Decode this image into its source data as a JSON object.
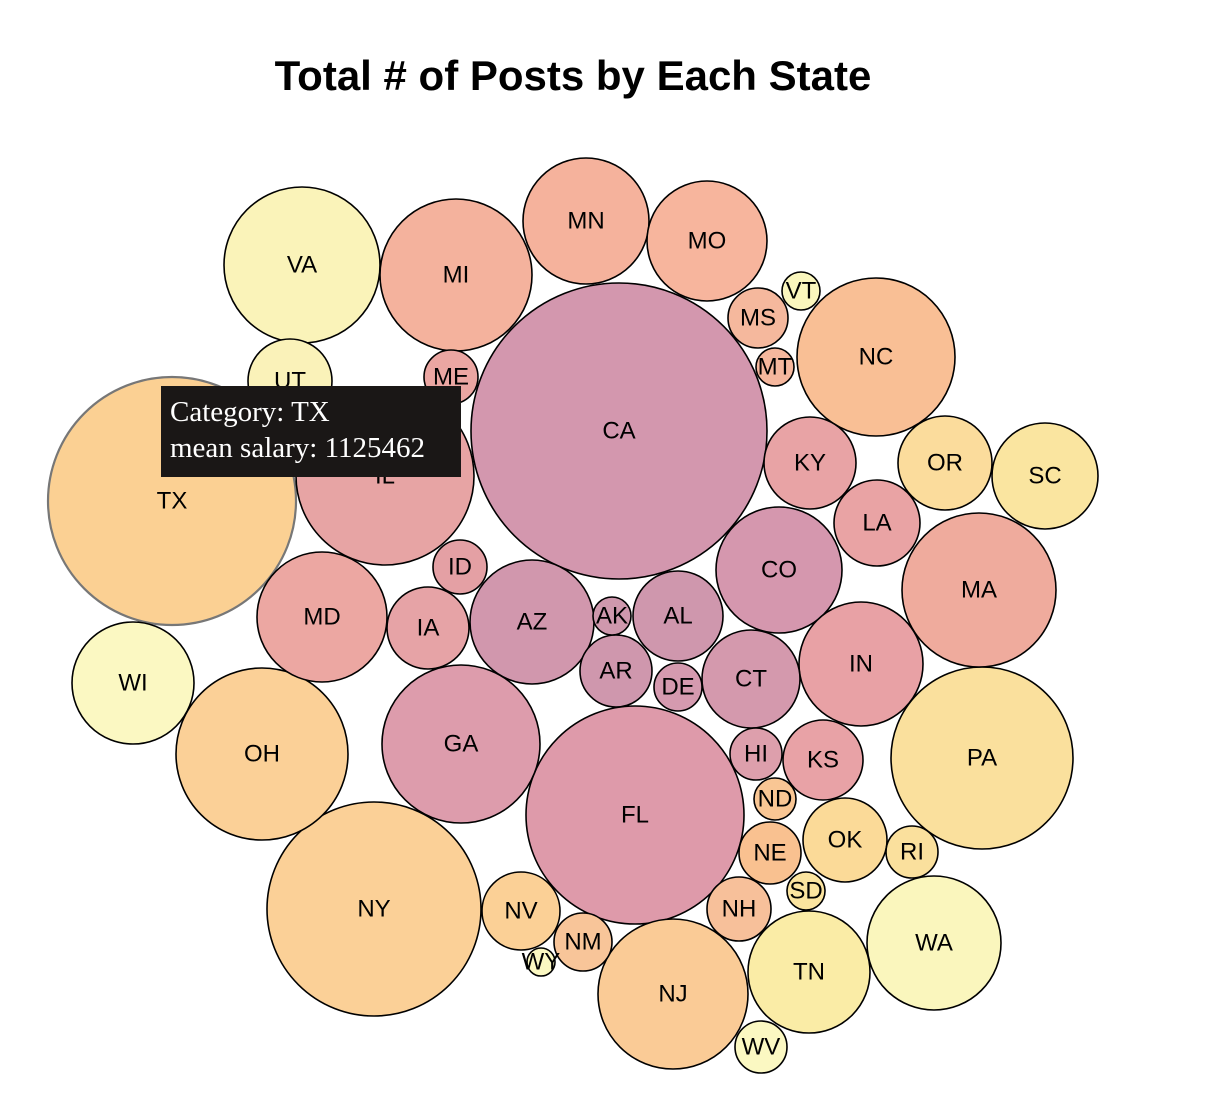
{
  "chart_data": {
    "type": "bubble",
    "title": "Total # of Posts by Each State",
    "bubbles": [
      {
        "label": "CA",
        "color": "#d397ae"
      },
      {
        "label": "TX",
        "color": "#fbd093"
      },
      {
        "label": "FL",
        "color": "#de9aaa"
      },
      {
        "label": "NY",
        "color": "#fbd097"
      },
      {
        "label": "PA",
        "color": "#fae09d"
      },
      {
        "label": "IL",
        "color": "#e7a4a4"
      },
      {
        "label": "NJ",
        "color": "#facb96"
      },
      {
        "label": "VA",
        "color": "#faf3b9"
      },
      {
        "label": "NC",
        "color": "#f9bf95"
      },
      {
        "label": "OH",
        "color": "#fbd097"
      },
      {
        "label": "GA",
        "color": "#dd9cac"
      },
      {
        "label": "MA",
        "color": "#efab9d"
      },
      {
        "label": "MI",
        "color": "#f4b29d"
      },
      {
        "label": "WA",
        "color": "#faf6bd"
      },
      {
        "label": "MN",
        "color": "#f5b29c"
      },
      {
        "label": "CO",
        "color": "#d597ae"
      },
      {
        "label": "AZ",
        "color": "#d197ad"
      },
      {
        "label": "MD",
        "color": "#eca7a2"
      },
      {
        "label": "MO",
        "color": "#f7b59d"
      },
      {
        "label": "IN",
        "color": "#e8a1a5"
      },
      {
        "label": "TN",
        "color": "#faeca6"
      },
      {
        "label": "WI",
        "color": "#fbf8c2"
      },
      {
        "label": "AL",
        "color": "#cf97ad"
      },
      {
        "label": "CT",
        "color": "#d499ad"
      },
      {
        "label": "SC",
        "color": "#fae5a0"
      },
      {
        "label": "OR",
        "color": "#fbdc9c"
      },
      {
        "label": "KY",
        "color": "#e8a3a5"
      },
      {
        "label": "AR",
        "color": "#cf97ad"
      },
      {
        "label": "IA",
        "color": "#e6a3a6"
      },
      {
        "label": "LA",
        "color": "#e9a3a4"
      },
      {
        "label": "OK",
        "color": "#fbda98"
      },
      {
        "label": "NV",
        "color": "#fbd096"
      },
      {
        "label": "KS",
        "color": "#e8a2a6"
      },
      {
        "label": "UT",
        "color": "#faf2b9"
      },
      {
        "label": "NE",
        "color": "#f9c190"
      },
      {
        "label": "NH",
        "color": "#f7c09a"
      },
      {
        "label": "NM",
        "color": "#f8c599"
      },
      {
        "label": "ME",
        "color": "#eba6a2"
      },
      {
        "label": "MS",
        "color": "#f5b89d"
      },
      {
        "label": "ID",
        "color": "#e4a0a4"
      },
      {
        "label": "HI",
        "color": "#dd9fac"
      },
      {
        "label": "DE",
        "color": "#d59aaf"
      },
      {
        "label": "RI",
        "color": "#fae09d"
      },
      {
        "label": "WV",
        "color": "#fbf8c2"
      },
      {
        "label": "AK",
        "color": "#cf98ad"
      },
      {
        "label": "ND",
        "color": "#f9c694"
      },
      {
        "label": "SD",
        "color": "#fbe49f"
      },
      {
        "label": "MT",
        "color": "#f5b79d"
      },
      {
        "label": "VT",
        "color": "#faf6bd"
      },
      {
        "label": "WY",
        "color": "#fbf8c2"
      }
    ],
    "hovered": "TX"
  },
  "tooltip": {
    "line1": "Category: TX",
    "line2": "mean salary: 1125462"
  }
}
